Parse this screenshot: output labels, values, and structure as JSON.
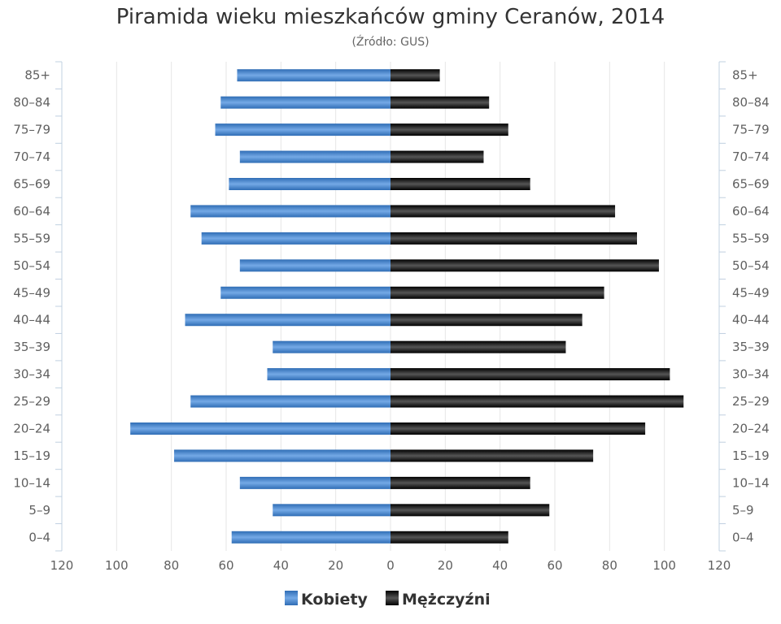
{
  "chart_data": {
    "type": "bar",
    "orientation": "horizontal",
    "title": "Piramida wieku mieszkańców gminy Ceranów, 2014",
    "subtitle": "(Źródło: GUS)",
    "categories": [
      "85+",
      "80–84",
      "75–79",
      "70–74",
      "65–69",
      "60–64",
      "55–59",
      "50–54",
      "45–49",
      "40–44",
      "35–39",
      "30–34",
      "25–29",
      "20–24",
      "15–19",
      "10–14",
      "5–9",
      "0–4"
    ],
    "series": [
      {
        "name": "Kobiety",
        "side": "left",
        "color": "#3a7bc8",
        "values": [
          56,
          62,
          64,
          55,
          59,
          73,
          69,
          55,
          62,
          75,
          43,
          45,
          73,
          95,
          79,
          55,
          43,
          58
        ]
      },
      {
        "name": "Mężczyźni",
        "side": "right",
        "color": "#111111",
        "values": [
          18,
          36,
          43,
          34,
          51,
          82,
          90,
          98,
          78,
          70,
          64,
          102,
          107,
          93,
          74,
          51,
          58,
          43
        ]
      }
    ],
    "xlim": [
      -120,
      120
    ],
    "x_ticks": [
      "120",
      "100",
      "80",
      "60",
      "40",
      "20",
      "0",
      "20",
      "40",
      "60",
      "80",
      "100",
      "120"
    ],
    "grid": true,
    "legend_position": "bottom-center"
  }
}
